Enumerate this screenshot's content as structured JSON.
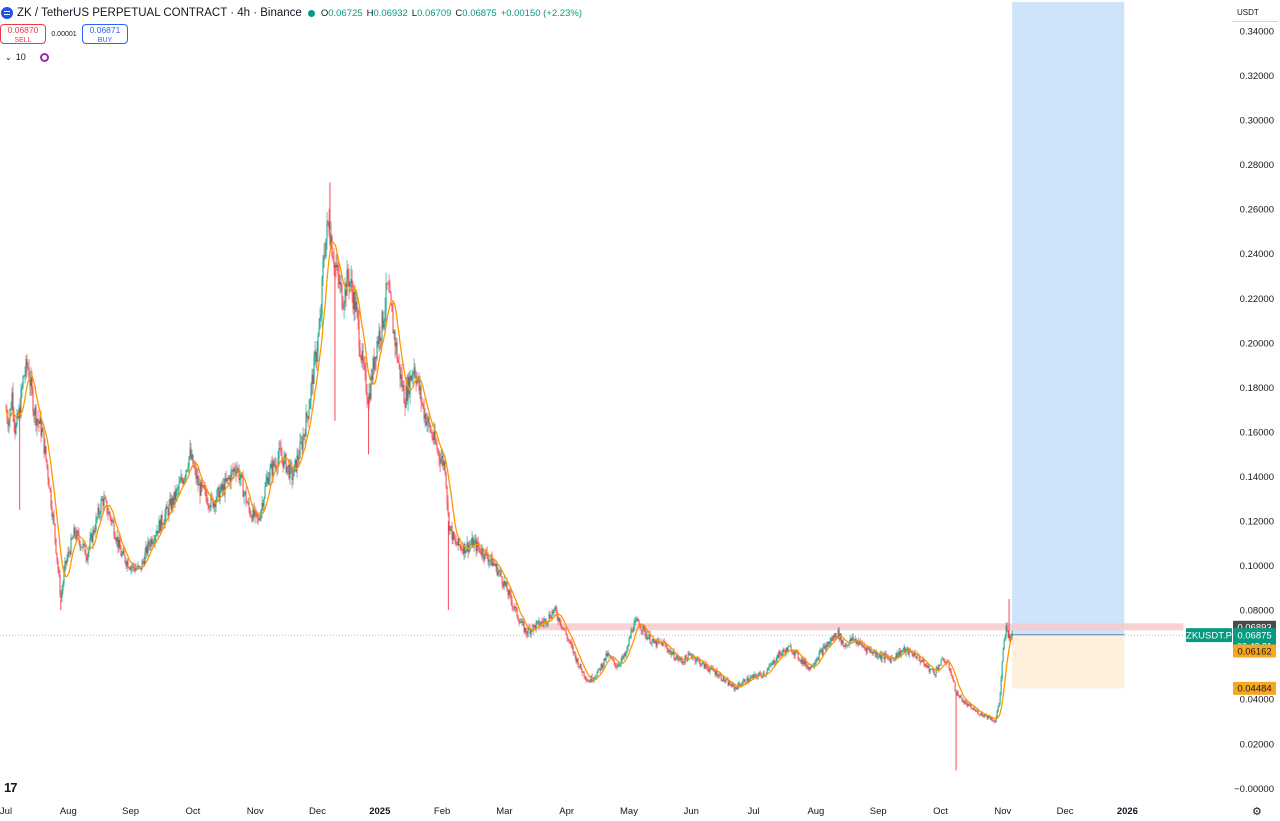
{
  "header": {
    "title": "ZK / TetherUS PERPETUAL CONTRACT · 4h · Binance",
    "status_color": "#089981",
    "ohlc": [
      {
        "label": "O",
        "value": "0.06725"
      },
      {
        "label": "H",
        "value": "0.06932"
      },
      {
        "label": "L",
        "value": "0.06709"
      },
      {
        "label": "C",
        "value": "0.06875"
      }
    ],
    "change": "+0.00150 (+2.23%)"
  },
  "trade": {
    "sell_price": "0.06870",
    "sell_label": "SELL",
    "spread": "0.00001",
    "buy_price": "0.06871",
    "buy_label": "BUY"
  },
  "indicator": {
    "value": "10"
  },
  "price_axis": {
    "currency": "USDT"
  },
  "price_labels": {
    "marker_top": "0.06893",
    "symbol": "ZKUSDT.P",
    "last_price": "0.06875",
    "countdown": "03:42:21",
    "stop": "0.06162",
    "target_low": "0.04484"
  },
  "colors": {
    "up": "#089981",
    "down": "#f23645",
    "ma": "#ff9800",
    "profit_zone": "#cfe3fa",
    "loss_zone": "#fdf1de",
    "resistance": "#f7caca"
  },
  "chart_data": {
    "type": "candlestick",
    "title": "ZK / TetherUS PERPETUAL CONTRACT · 4h · Binance",
    "y_ticks": [
      "0.34000",
      "0.32000",
      "0.30000",
      "0.28000",
      "0.26000",
      "0.24000",
      "0.22000",
      "0.20000",
      "0.18000",
      "0.16000",
      "0.14000",
      "0.12000",
      "0.10000",
      "0.08000",
      "0.04000",
      "0.02000",
      "−0.00000"
    ],
    "y_tick_values": [
      0.34,
      0.32,
      0.3,
      0.28,
      0.26,
      0.24,
      0.22,
      0.2,
      0.18,
      0.16,
      0.14,
      0.12,
      0.1,
      0.08,
      0.04,
      0.02,
      0.0
    ],
    "ylim": [
      -0.003,
      0.353
    ],
    "x_ticks": [
      {
        "label": "Jul",
        "t": 0
      },
      {
        "label": "Aug",
        "t": 1
      },
      {
        "label": "Sep",
        "t": 2
      },
      {
        "label": "Oct",
        "t": 3
      },
      {
        "label": "Nov",
        "t": 4
      },
      {
        "label": "Dec",
        "t": 5
      },
      {
        "label": "2025",
        "t": 6,
        "bold": true
      },
      {
        "label": "Feb",
        "t": 7
      },
      {
        "label": "Mar",
        "t": 8
      },
      {
        "label": "Apr",
        "t": 9
      },
      {
        "label": "May",
        "t": 10
      },
      {
        "label": "Jun",
        "t": 11
      },
      {
        "label": "Jul",
        "t": 12
      },
      {
        "label": "Aug",
        "t": 13
      },
      {
        "label": "Sep",
        "t": 14
      },
      {
        "label": "Oct",
        "t": 15
      },
      {
        "label": "Nov",
        "t": 16
      },
      {
        "label": "Dec",
        "t": 17
      },
      {
        "label": "2026",
        "t": 18,
        "bold": true
      }
    ],
    "price_path": [
      [
        0.0,
        0.17
      ],
      [
        0.05,
        0.165
      ],
      [
        0.1,
        0.178
      ],
      [
        0.15,
        0.16
      ],
      [
        0.22,
        0.17
      ],
      [
        0.28,
        0.185
      ],
      [
        0.35,
        0.19
      ],
      [
        0.45,
        0.17
      ],
      [
        0.58,
        0.16
      ],
      [
        0.68,
        0.14
      ],
      [
        0.78,
        0.115
      ],
      [
        0.88,
        0.085
      ],
      [
        0.95,
        0.1
      ],
      [
        1.1,
        0.115
      ],
      [
        1.3,
        0.105
      ],
      [
        1.55,
        0.13
      ],
      [
        1.7,
        0.12
      ],
      [
        1.85,
        0.105
      ],
      [
        2.0,
        0.1
      ],
      [
        2.15,
        0.098
      ],
      [
        2.3,
        0.11
      ],
      [
        2.5,
        0.12
      ],
      [
        2.7,
        0.13
      ],
      [
        2.85,
        0.14
      ],
      [
        2.95,
        0.15
      ],
      [
        3.1,
        0.135
      ],
      [
        3.3,
        0.128
      ],
      [
        3.5,
        0.135
      ],
      [
        3.7,
        0.145
      ],
      [
        3.9,
        0.125
      ],
      [
        4.05,
        0.12
      ],
      [
        4.2,
        0.14
      ],
      [
        4.4,
        0.15
      ],
      [
        4.6,
        0.14
      ],
      [
        4.75,
        0.155
      ],
      [
        4.85,
        0.17
      ],
      [
        4.95,
        0.19
      ],
      [
        5.05,
        0.21
      ],
      [
        5.1,
        0.24
      ],
      [
        5.18,
        0.255
      ],
      [
        5.28,
        0.235
      ],
      [
        5.4,
        0.22
      ],
      [
        5.5,
        0.23
      ],
      [
        5.62,
        0.215
      ],
      [
        5.72,
        0.19
      ],
      [
        5.82,
        0.175
      ],
      [
        5.95,
        0.2
      ],
      [
        6.05,
        0.21
      ],
      [
        6.12,
        0.225
      ],
      [
        6.2,
        0.21
      ],
      [
        6.3,
        0.19
      ],
      [
        6.4,
        0.175
      ],
      [
        6.55,
        0.19
      ],
      [
        6.7,
        0.17
      ],
      [
        6.82,
        0.16
      ],
      [
        6.95,
        0.15
      ],
      [
        7.05,
        0.145
      ],
      [
        7.1,
        0.12
      ],
      [
        7.2,
        0.11
      ],
      [
        7.35,
        0.108
      ],
      [
        7.5,
        0.11
      ],
      [
        7.7,
        0.105
      ],
      [
        7.85,
        0.1
      ],
      [
        7.95,
        0.095
      ],
      [
        8.1,
        0.085
      ],
      [
        8.25,
        0.075
      ],
      [
        8.35,
        0.07
      ],
      [
        8.5,
        0.073
      ],
      [
        8.65,
        0.075
      ],
      [
        8.8,
        0.08
      ],
      [
        8.9,
        0.075
      ],
      [
        9.05,
        0.065
      ],
      [
        9.2,
        0.055
      ],
      [
        9.35,
        0.048
      ],
      [
        9.5,
        0.052
      ],
      [
        9.65,
        0.06
      ],
      [
        9.8,
        0.055
      ],
      [
        9.95,
        0.06
      ],
      [
        10.05,
        0.072
      ],
      [
        10.15,
        0.075
      ],
      [
        10.25,
        0.07
      ],
      [
        10.4,
        0.065
      ],
      [
        10.55,
        0.065
      ],
      [
        10.7,
        0.06
      ],
      [
        10.85,
        0.057
      ],
      [
        11.0,
        0.06
      ],
      [
        11.2,
        0.055
      ],
      [
        11.4,
        0.052
      ],
      [
        11.55,
        0.048
      ],
      [
        11.7,
        0.045
      ],
      [
        11.85,
        0.048
      ],
      [
        12.0,
        0.05
      ],
      [
        12.2,
        0.052
      ],
      [
        12.4,
        0.06
      ],
      [
        12.6,
        0.063
      ],
      [
        12.75,
        0.058
      ],
      [
        12.9,
        0.054
      ],
      [
        13.05,
        0.06
      ],
      [
        13.2,
        0.065
      ],
      [
        13.35,
        0.07
      ],
      [
        13.45,
        0.064
      ],
      [
        13.6,
        0.067
      ],
      [
        13.8,
        0.063
      ],
      [
        14.0,
        0.06
      ],
      [
        14.2,
        0.058
      ],
      [
        14.4,
        0.062
      ],
      [
        14.6,
        0.06
      ],
      [
        14.8,
        0.054
      ],
      [
        14.9,
        0.052
      ],
      [
        15.05,
        0.058
      ],
      [
        15.15,
        0.054
      ],
      [
        15.25,
        0.043
      ],
      [
        15.4,
        0.038
      ],
      [
        15.6,
        0.034
      ],
      [
        15.78,
        0.032
      ],
      [
        15.88,
        0.03
      ],
      [
        15.95,
        0.04
      ],
      [
        16.0,
        0.06
      ],
      [
        16.05,
        0.072
      ],
      [
        16.1,
        0.068
      ],
      [
        16.15,
        0.0688
      ]
    ],
    "wicks": [
      {
        "t": 0.22,
        "low": 0.125
      },
      {
        "t": 0.88,
        "low": 0.08
      },
      {
        "t": 5.28,
        "low": 0.165
      },
      {
        "t": 5.82,
        "low": 0.15
      },
      {
        "t": 7.1,
        "low": 0.08
      },
      {
        "t": 5.2,
        "high": 0.272
      },
      {
        "t": 15.25,
        "low": 0.008
      },
      {
        "t": 16.1,
        "high": 0.085
      }
    ],
    "resistance_level": 0.0725,
    "last_price": 0.06875,
    "position": {
      "type": "long",
      "entry": 0.06893,
      "stop": 0.04484,
      "target": 0.353,
      "t_start": 16.15,
      "t_end": 17.95
    }
  }
}
